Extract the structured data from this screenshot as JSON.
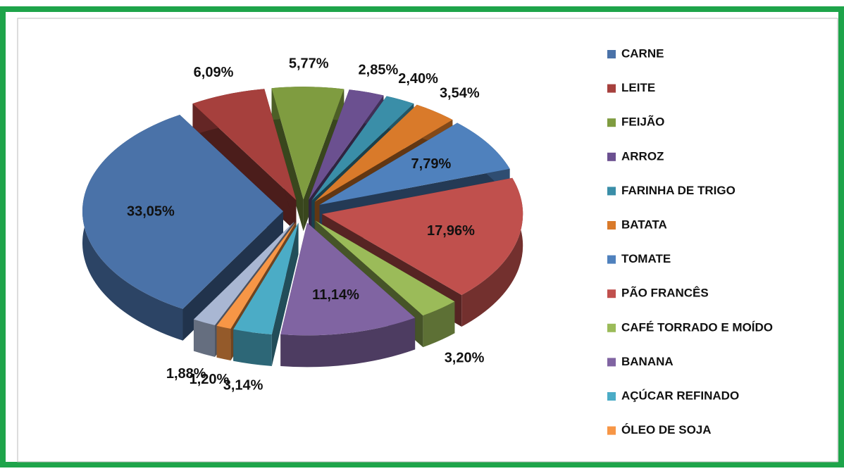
{
  "chart_data": {
    "type": "pie",
    "categories": [
      "CARNE",
      "LEITE",
      "FEIJÃO",
      "ARROZ",
      "FARINHA DE TRIGO",
      "BATATA",
      "TOMATE",
      "PÃO FRANCÊS",
      "CAFÉ TORRADO E MOÍDO",
      "BANANA",
      "AÇÚCAR REFINADO",
      "ÓLEO DE SOJA",
      null
    ],
    "values": [
      33.05,
      6.09,
      5.77,
      2.85,
      2.4,
      3.54,
      7.79,
      17.96,
      3.2,
      11.14,
      3.14,
      1.2,
      1.88
    ],
    "value_labels": [
      "33,05%",
      "6,09%",
      "5,77%",
      "2,85%",
      "2,40%",
      "3,54%",
      "7,79%",
      "17,96%",
      "3,20%",
      "11,14%",
      "3,14%",
      "1,20%",
      "1,88%"
    ],
    "colors": [
      "#4a72a8",
      "#a6403d",
      "#7f9c40",
      "#6b5090",
      "#3a8ea8",
      "#d97a2a",
      "#4f81bd",
      "#c0504d",
      "#9bbb59",
      "#8064a2",
      "#4bacc6",
      "#f79646",
      "#a9b7d3"
    ],
    "legend": "right"
  }
}
